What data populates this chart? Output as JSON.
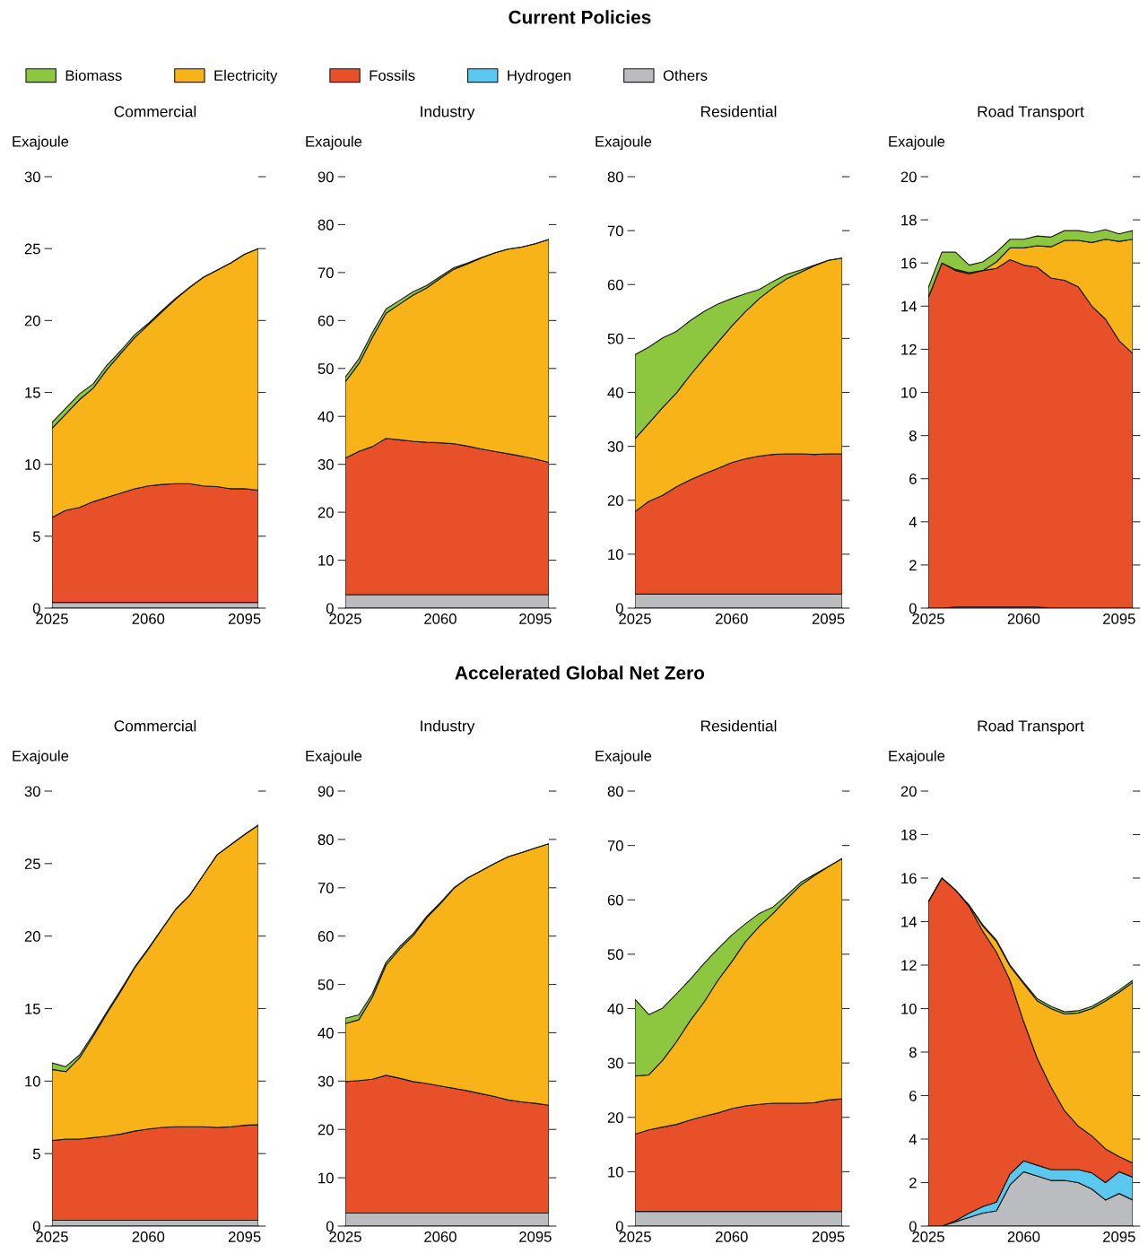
{
  "chart_data": [
    {
      "type": "area",
      "stacked": true,
      "title": "Commercial",
      "ylabel": "Exajoule",
      "annotations": [
        "Current Policies"
      ],
      "x": [
        2025,
        2030,
        2035,
        2040,
        2045,
        2050,
        2055,
        2060,
        2065,
        2070,
        2075,
        2080,
        2085,
        2090,
        2095,
        2100
      ],
      "xlim": [
        2025,
        2100
      ],
      "xticks": [
        2025,
        2060,
        2095
      ],
      "ylim": [
        0,
        30
      ],
      "yticks": [
        0,
        5,
        10,
        15,
        20,
        25,
        30
      ],
      "series": [
        {
          "color": "#bbbcbf",
          "values": [
            0.4,
            0.4,
            0.4,
            0.4,
            0.4,
            0.4,
            0.4,
            0.4,
            0.4,
            0.4,
            0.4,
            0.4,
            0.4,
            0.4,
            0.4,
            0.4
          ]
        },
        {
          "color": "#e8502a",
          "values": [
            5.9,
            6.4,
            6.6,
            7.0,
            7.3,
            7.6,
            7.9,
            8.1,
            8.2,
            8.25,
            8.25,
            8.1,
            8.05,
            7.9,
            7.9,
            7.8
          ]
        },
        {
          "color": "#f8b319",
          "values": [
            6.2,
            6.7,
            7.5,
            7.9,
            8.9,
            9.7,
            10.5,
            11.2,
            12.0,
            12.85,
            13.65,
            14.5,
            15.05,
            15.7,
            16.3,
            16.8
          ]
        },
        {
          "color": "#8dc63f",
          "values": [
            0.4,
            0.4,
            0.4,
            0.3,
            0.3,
            0.2,
            0.2,
            0.1,
            0.1,
            0.05,
            0,
            0,
            0,
            0,
            0,
            0
          ]
        }
      ]
    },
    {
      "type": "area",
      "stacked": true,
      "title": "Industry",
      "ylabel": "Exajoule",
      "x": [
        2025,
        2030,
        2035,
        2040,
        2045,
        2050,
        2055,
        2060,
        2065,
        2070,
        2075,
        2080,
        2085,
        2090,
        2095,
        2100
      ],
      "xlim": [
        2025,
        2100
      ],
      "xticks": [
        2025,
        2060,
        2095
      ],
      "ylim": [
        0,
        90
      ],
      "yticks": [
        0,
        10,
        20,
        30,
        40,
        50,
        60,
        70,
        80,
        90
      ],
      "series": [
        {
          "color": "#bbbcbf",
          "values": [
            2.8,
            2.8,
            2.8,
            2.8,
            2.8,
            2.8,
            2.8,
            2.8,
            2.8,
            2.8,
            2.8,
            2.8,
            2.8,
            2.8,
            2.8,
            2.8
          ]
        },
        {
          "color": "#e8502a",
          "values": [
            28.5,
            29.9,
            30.9,
            32.6,
            32.3,
            32.0,
            31.8,
            31.7,
            31.5,
            31.0,
            30.4,
            29.9,
            29.4,
            28.9,
            28.3,
            27.6
          ]
        },
        {
          "color": "#f8b319",
          "values": [
            15.9,
            18.3,
            22.8,
            26.1,
            28.3,
            30.5,
            32.2,
            34.3,
            36.4,
            38.0,
            39.8,
            41.4,
            42.7,
            43.6,
            44.9,
            46.5
          ]
        },
        {
          "color": "#8dc63f",
          "values": [
            1.0,
            1.0,
            1.0,
            0.9,
            0.8,
            0.7,
            0.5,
            0.4,
            0.3,
            0.2,
            0.1,
            0,
            0,
            0,
            0,
            0
          ]
        }
      ]
    },
    {
      "type": "area",
      "stacked": true,
      "title": "Residential",
      "ylabel": "Exajoule",
      "x": [
        2025,
        2030,
        2035,
        2040,
        2045,
        2050,
        2055,
        2060,
        2065,
        2070,
        2075,
        2080,
        2085,
        2090,
        2095,
        2100
      ],
      "xlim": [
        2025,
        2100
      ],
      "xticks": [
        2025,
        2060,
        2095
      ],
      "ylim": [
        0,
        80
      ],
      "yticks": [
        0,
        10,
        20,
        30,
        40,
        50,
        60,
        70,
        80
      ],
      "series": [
        {
          "color": "#bbbcbf",
          "values": [
            2.6,
            2.6,
            2.6,
            2.6,
            2.6,
            2.6,
            2.6,
            2.6,
            2.6,
            2.6,
            2.6,
            2.6,
            2.6,
            2.6,
            2.6,
            2.6
          ]
        },
        {
          "color": "#e8502a",
          "values": [
            15.3,
            17.2,
            18.3,
            19.9,
            21.2,
            22.3,
            23.3,
            24.4,
            25.1,
            25.6,
            25.9,
            26.0,
            26.0,
            25.9,
            26.0,
            26.0
          ]
        },
        {
          "color": "#f8b319",
          "values": [
            13.5,
            14.5,
            16.3,
            17.4,
            19.4,
            21.4,
            23.4,
            25.3,
            27.3,
            29.2,
            30.9,
            32.5,
            33.7,
            35.0,
            35.9,
            36.3
          ]
        },
        {
          "color": "#8dc63f",
          "values": [
            15.6,
            14.1,
            12.9,
            11.4,
            10.1,
            8.7,
            7.1,
            5.1,
            3.3,
            1.7,
            1.2,
            0.8,
            0.4,
            0.1,
            0,
            0
          ]
        }
      ]
    },
    {
      "type": "area",
      "stacked": true,
      "title": "Road Transport",
      "ylabel": "Exajoule",
      "x": [
        2025,
        2030,
        2035,
        2040,
        2045,
        2050,
        2055,
        2060,
        2065,
        2070,
        2075,
        2080,
        2085,
        2090,
        2095,
        2100
      ],
      "xlim": [
        2025,
        2100
      ],
      "xticks": [
        2025,
        2060,
        2095
      ],
      "ylim": [
        0,
        20
      ],
      "yticks": [
        0,
        2,
        4,
        6,
        8,
        10,
        12,
        14,
        16,
        18,
        20
      ],
      "series": [
        {
          "color": "#bbbcbf",
          "values": [
            0,
            0,
            0.05,
            0.05,
            0.05,
            0.05,
            0.05,
            0.05,
            0.05,
            0,
            0,
            0,
            0,
            0,
            0,
            0
          ]
        },
        {
          "color": "#e8502a",
          "values": [
            14.4,
            16.0,
            15.6,
            15.45,
            15.6,
            15.7,
            16.1,
            15.85,
            15.75,
            15.3,
            15.2,
            14.9,
            14.0,
            13.4,
            12.4,
            11.8
          ]
        },
        {
          "color": "#f8b319",
          "values": [
            0,
            0,
            0.05,
            0.05,
            0,
            0.3,
            0.55,
            0.8,
            1.0,
            1.45,
            1.85,
            2.15,
            2.95,
            3.7,
            4.6,
            5.3
          ]
        },
        {
          "color": "#8dc63f",
          "values": [
            0.45,
            0.5,
            0.8,
            0.35,
            0.4,
            0.45,
            0.4,
            0.4,
            0.45,
            0.45,
            0.45,
            0.45,
            0.45,
            0.45,
            0.35,
            0.4
          ]
        }
      ]
    },
    {
      "type": "area",
      "stacked": true,
      "title": "Commercial",
      "ylabel": "Exajoule",
      "annotations": [
        "Accelerated Global Net Zero"
      ],
      "x": [
        2025,
        2030,
        2035,
        2040,
        2045,
        2050,
        2055,
        2060,
        2065,
        2070,
        2075,
        2080,
        2085,
        2090,
        2095,
        2100
      ],
      "xlim": [
        2025,
        2100
      ],
      "xticks": [
        2025,
        2060,
        2095
      ],
      "ylim": [
        0,
        30
      ],
      "yticks": [
        0,
        5,
        10,
        15,
        20,
        25,
        30
      ],
      "series": [
        {
          "color": "#bbbcbf",
          "values": [
            0.4,
            0.4,
            0.4,
            0.4,
            0.4,
            0.4,
            0.4,
            0.4,
            0.4,
            0.4,
            0.4,
            0.4,
            0.4,
            0.4,
            0.4,
            0.4
          ]
        },
        {
          "color": "#e8502a",
          "values": [
            5.5,
            5.6,
            5.6,
            5.7,
            5.8,
            5.95,
            6.15,
            6.3,
            6.4,
            6.45,
            6.45,
            6.45,
            6.4,
            6.45,
            6.55,
            6.6
          ]
        },
        {
          "color": "#f8b319",
          "values": [
            4.9,
            4.65,
            5.6,
            7.0,
            8.5,
            9.85,
            11.25,
            12.4,
            13.7,
            15.0,
            15.95,
            17.35,
            18.8,
            19.45,
            20.05,
            20.65
          ]
        },
        {
          "color": "#8dc63f",
          "values": [
            0.45,
            0.35,
            0.2,
            0.15,
            0.1,
            0.1,
            0.05,
            0.05,
            0,
            0,
            0,
            0,
            0,
            0,
            0,
            0
          ]
        }
      ]
    },
    {
      "type": "area",
      "stacked": true,
      "title": "Industry",
      "ylabel": "Exajoule",
      "x": [
        2025,
        2030,
        2035,
        2040,
        2045,
        2050,
        2055,
        2060,
        2065,
        2070,
        2075,
        2080,
        2085,
        2090,
        2095,
        2100
      ],
      "xlim": [
        2025,
        2100
      ],
      "xticks": [
        2025,
        2060,
        2095
      ],
      "ylim": [
        0,
        90
      ],
      "yticks": [
        0,
        10,
        20,
        30,
        40,
        50,
        60,
        70,
        80,
        90
      ],
      "series": [
        {
          "color": "#bbbcbf",
          "values": [
            2.7,
            2.7,
            2.7,
            2.7,
            2.7,
            2.7,
            2.7,
            2.7,
            2.7,
            2.7,
            2.7,
            2.7,
            2.7,
            2.7,
            2.7,
            2.7
          ]
        },
        {
          "color": "#e8502a",
          "values": [
            27.2,
            27.4,
            27.7,
            28.5,
            27.9,
            27.2,
            26.8,
            26.3,
            25.8,
            25.3,
            24.7,
            24.1,
            23.4,
            23.0,
            22.7,
            22.3
          ]
        },
        {
          "color": "#f8b319",
          "values": [
            12.0,
            12.6,
            17.0,
            22.8,
            26.7,
            30.2,
            34.3,
            37.7,
            41.4,
            44.0,
            46.1,
            48.2,
            50.3,
            51.6,
            52.8,
            54.1
          ]
        },
        {
          "color": "#8dc63f",
          "values": [
            1.1,
            1.0,
            0.7,
            0.6,
            0.5,
            0.4,
            0.3,
            0.2,
            0.1,
            0,
            0,
            0,
            0,
            0,
            0,
            0
          ]
        }
      ]
    },
    {
      "type": "area",
      "stacked": true,
      "title": "Residential",
      "ylabel": "Exajoule",
      "x": [
        2025,
        2030,
        2035,
        2040,
        2045,
        2050,
        2055,
        2060,
        2065,
        2070,
        2075,
        2080,
        2085,
        2090,
        2095,
        2100
      ],
      "xlim": [
        2025,
        2100
      ],
      "xticks": [
        2025,
        2060,
        2095
      ],
      "ylim": [
        0,
        80
      ],
      "yticks": [
        0,
        10,
        20,
        30,
        40,
        50,
        60,
        70,
        80
      ],
      "series": [
        {
          "color": "#bbbcbf",
          "values": [
            2.7,
            2.7,
            2.7,
            2.7,
            2.7,
            2.7,
            2.7,
            2.7,
            2.7,
            2.7,
            2.7,
            2.7,
            2.7,
            2.7,
            2.7,
            2.7
          ]
        },
        {
          "color": "#e8502a",
          "values": [
            14.2,
            15.0,
            15.5,
            16.0,
            16.8,
            17.5,
            18.1,
            18.9,
            19.4,
            19.7,
            19.9,
            19.9,
            19.9,
            20.0,
            20.5,
            20.7
          ]
        },
        {
          "color": "#f8b319",
          "values": [
            10.7,
            10.1,
            12.3,
            15.2,
            18.3,
            21.0,
            24.4,
            27.0,
            30.2,
            32.7,
            34.9,
            37.6,
            40.1,
            41.8,
            42.9,
            44.2
          ]
        },
        {
          "color": "#8dc63f",
          "values": [
            14.1,
            11.1,
            9.6,
            8.8,
            7.6,
            7.1,
            5.8,
            4.9,
            3.3,
            2.4,
            1.2,
            0.7,
            0.5,
            0.2,
            0,
            0
          ]
        }
      ]
    },
    {
      "type": "area",
      "stacked": true,
      "title": "Road Transport",
      "ylabel": "Exajoule",
      "legend": "top",
      "x": [
        2025,
        2030,
        2035,
        2040,
        2045,
        2050,
        2055,
        2060,
        2065,
        2070,
        2075,
        2080,
        2085,
        2090,
        2095,
        2100
      ],
      "xlim": [
        2025,
        2100
      ],
      "xticks": [
        2025,
        2060,
        2095
      ],
      "ylim": [
        0,
        20
      ],
      "yticks": [
        0,
        2,
        4,
        6,
        8,
        10,
        12,
        14,
        16,
        18,
        20
      ],
      "series": [
        {
          "name": "Others",
          "color": "#bbbcbf",
          "values": [
            0,
            0,
            0.2,
            0.4,
            0.6,
            0.7,
            1.9,
            2.5,
            2.3,
            2.1,
            2.1,
            2.0,
            1.7,
            1.2,
            1.5,
            1.2
          ]
        },
        {
          "name": "Hydrogen",
          "color": "#5bc8f0",
          "values": [
            0,
            0,
            0.05,
            0.2,
            0.3,
            0.4,
            0.5,
            0.5,
            0.5,
            0.5,
            0.5,
            0.6,
            0.75,
            0.8,
            1.0,
            1.05
          ]
        },
        {
          "name": "Fossils",
          "color": "#e8502a",
          "values": [
            14.9,
            16.0,
            15.2,
            14.1,
            12.65,
            11.5,
            8.9,
            6.4,
            4.9,
            3.8,
            2.7,
            2.0,
            1.7,
            1.55,
            0.7,
            0.65
          ]
        },
        {
          "name": "Electricity",
          "color": "#f8b319",
          "values": [
            0,
            0,
            0,
            0.05,
            0.25,
            0.5,
            0.65,
            1.75,
            2.65,
            3.6,
            4.45,
            5.2,
            5.85,
            6.8,
            7.55,
            8.3
          ]
        },
        {
          "name": "Biomass",
          "color": "#8dc63f",
          "values": [
            0,
            0,
            0,
            0,
            0.05,
            0.05,
            0.05,
            0.05,
            0.1,
            0.1,
            0.1,
            0.1,
            0.1,
            0.1,
            0.1,
            0.1
          ]
        }
      ]
    }
  ]
}
